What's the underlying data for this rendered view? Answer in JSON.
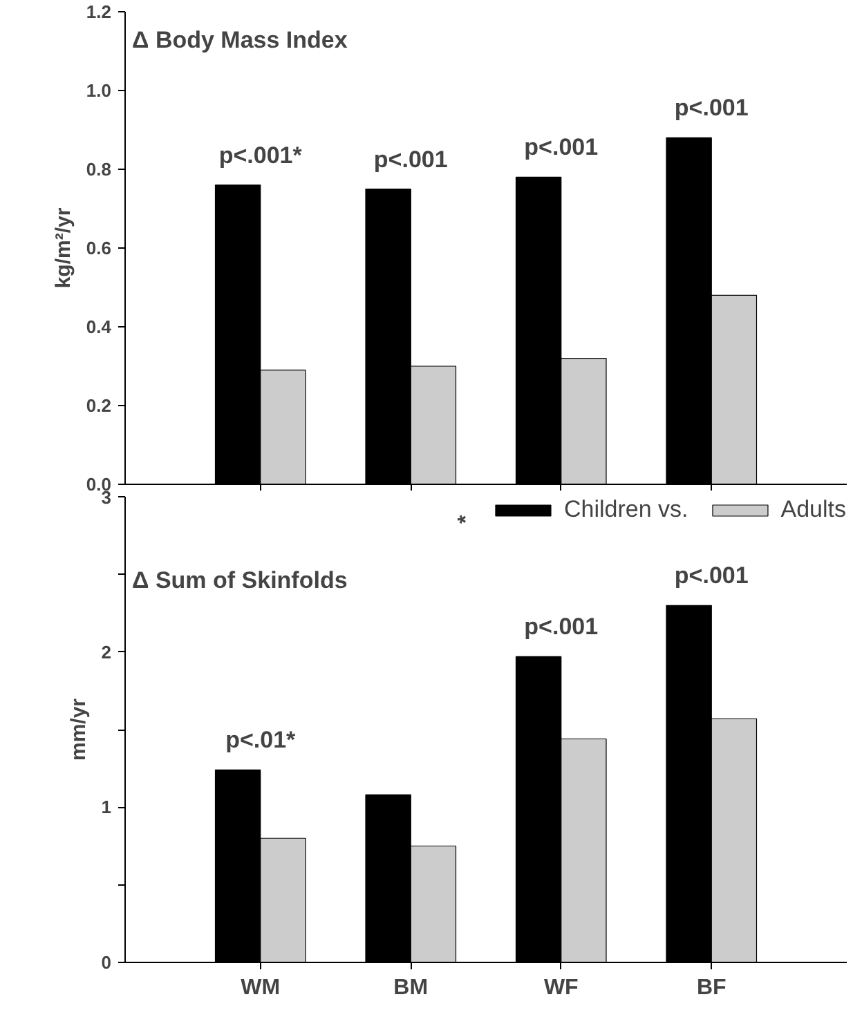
{
  "chart_data": [
    {
      "type": "bar",
      "title": "Δ Body Mass Index",
      "ylabel": "kg/m²/yr",
      "categories": [
        "WM",
        "BM",
        "WF",
        "BF"
      ],
      "series": [
        {
          "color": "#000000",
          "values": [
            0.76,
            0.75,
            0.78,
            0.88
          ]
        },
        {
          "color": "#cccccc",
          "values": [
            0.29,
            0.3,
            0.32,
            0.48
          ]
        }
      ],
      "ylim": [
        0,
        1.2
      ],
      "yticks": [
        {
          "value": 0,
          "label": "0.0"
        },
        0.2,
        0.4,
        0.6,
        0.8,
        {
          "value": 1,
          "label": "1.0"
        },
        1.2
      ],
      "tick_labels": "y",
      "grid": false,
      "legend": false,
      "annotations": [
        {
          "text": "p<.001*",
          "x": "WM",
          "y": 0.76
        },
        {
          "text": "p<.001",
          "x": "BM",
          "y": 0.75
        },
        {
          "text": "p<.001",
          "x": "WF",
          "y": 0.78
        },
        {
          "text": "p<.001",
          "x": "BF",
          "y": 0.88
        }
      ]
    },
    {
      "type": "bar",
      "title": "Δ Sum of Skinfolds",
      "ylabel": "mm/yr",
      "categories": [
        "WM",
        "BM",
        "WF",
        "BF"
      ],
      "series": [
        {
          "name": "Children vs.",
          "color": "#000000",
          "values": [
            1.24,
            1.08,
            1.97,
            2.3
          ]
        },
        {
          "name": "Adults",
          "color": "#cccccc",
          "values": [
            0.8,
            0.75,
            1.44,
            1.57
          ]
        }
      ],
      "ylim": [
        0,
        3
      ],
      "yticks": [
        0,
        {
          "value": 0.5,
          "label": null
        },
        1,
        {
          "value": 1.5,
          "label": null
        },
        2,
        {
          "value": 2.5,
          "label": null
        },
        3
      ],
      "grid": false,
      "legend": "top right",
      "legend_title": "*",
      "annotations": [
        {
          "text": "p<.01*",
          "x": "WM",
          "y": 1.24
        },
        {
          "text": "p<.001",
          "x": "WF",
          "y": 1.97
        },
        {
          "text": "p<.001",
          "x": "BF",
          "y": 2.3
        }
      ]
    }
  ]
}
